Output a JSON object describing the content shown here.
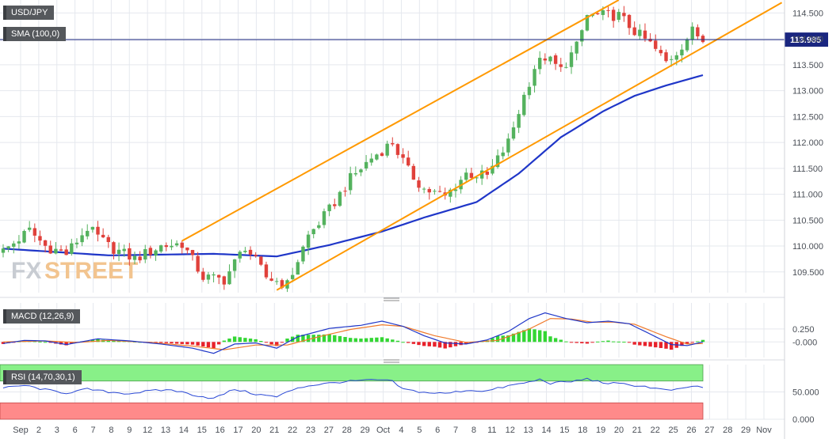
{
  "colors": {
    "up": "#54b25e",
    "down": "#e0413b",
    "sma": "#1f36c8",
    "channel": "#ff9900",
    "macd_line": "#1f36c8",
    "signal_line": "#f07a2b",
    "hist_pos": "#33d633",
    "hist_neg": "#e8212a",
    "rsi_line": "#2c4ad6",
    "rsi_overbought_zone": "#88f088",
    "rsi_oversold_zone": "#ff8a8a",
    "grid": "#e5e8ee",
    "current_price_line": "#1a2680"
  },
  "labels": {
    "symbol": "USD/JPY",
    "sma": "SMA (100,0)",
    "macd": "MACD (12,26,9)",
    "rsi": "RSI (14,70,30,1)",
    "watermark_fx": "FX",
    "watermark_street": "STREET",
    "current_price": "113.985"
  },
  "chart_data": [
    {
      "type": "candlestick",
      "title": "USD/JPY",
      "ylim": [
        109.1,
        114.75
      ],
      "y_ticks": [
        "114.500",
        "114.000",
        "113.500",
        "113.000",
        "112.500",
        "112.000",
        "111.500",
        "111.000",
        "110.500",
        "110.000",
        "109.500"
      ],
      "x_ticks": [
        "Sep",
        "2",
        "3",
        "6",
        "7",
        "8",
        "9",
        "12",
        "13",
        "14",
        "15",
        "16",
        "17",
        "20",
        "21",
        "22",
        "23",
        "27",
        "28",
        "29",
        "Oct",
        "4",
        "5",
        "6",
        "7",
        "8",
        "11",
        "12",
        "13",
        "14",
        "15",
        "18",
        "19",
        "20",
        "21",
        "22",
        "25",
        "26",
        "27",
        "28",
        "29",
        "Nov"
      ],
      "current_price": 113.985,
      "close_keypoints": [
        [
          0,
          109.9
        ],
        [
          5,
          110.3
        ],
        [
          8,
          110.0
        ],
        [
          12,
          109.85
        ],
        [
          16,
          110.35
        ],
        [
          20,
          110.0
        ],
        [
          25,
          109.75
        ],
        [
          30,
          110.0
        ],
        [
          34,
          110.05
        ],
        [
          38,
          109.4
        ],
        [
          42,
          109.35
        ],
        [
          46,
          110.0
        ],
        [
          50,
          109.4
        ],
        [
          54,
          109.25
        ],
        [
          58,
          110.2
        ],
        [
          62,
          110.7
        ],
        [
          66,
          111.3
        ],
        [
          70,
          111.7
        ],
        [
          74,
          112.0
        ],
        [
          77,
          111.45
        ],
        [
          80,
          111.1
        ],
        [
          84,
          110.95
        ],
        [
          88,
          111.4
        ],
        [
          92,
          111.35
        ],
        [
          96,
          112.0
        ],
        [
          99,
          112.9
        ],
        [
          101,
          113.45
        ],
        [
          103,
          113.65
        ],
        [
          106,
          113.4
        ],
        [
          109,
          113.85
        ],
        [
          111,
          114.45
        ],
        [
          114,
          114.45
        ],
        [
          117,
          114.45
        ],
        [
          120,
          114.15
        ],
        [
          123,
          113.9
        ],
        [
          126,
          113.55
        ],
        [
          128,
          113.75
        ],
        [
          131,
          114.15
        ],
        [
          133,
          113.985
        ]
      ],
      "sma_100": [
        [
          0,
          109.95
        ],
        [
          20,
          109.82
        ],
        [
          40,
          109.85
        ],
        [
          52,
          109.8
        ],
        [
          62,
          110.02
        ],
        [
          72,
          110.28
        ],
        [
          80,
          110.55
        ],
        [
          90,
          110.85
        ],
        [
          98,
          111.4
        ],
        [
          106,
          112.1
        ],
        [
          114,
          112.6
        ],
        [
          120,
          112.9
        ],
        [
          126,
          113.1
        ],
        [
          133,
          113.3
        ]
      ],
      "channel_lines": [
        {
          "name": "upper",
          "points": [
            [
              34,
              110.1
            ],
            [
              117,
              114.75
            ]
          ]
        },
        {
          "name": "lower",
          "points": [
            [
              52,
              109.15
            ],
            [
              148,
              114.7
            ]
          ]
        }
      ]
    },
    {
      "type": "line",
      "title": "MACD (12,26,9)",
      "ylim": [
        -0.3,
        0.75
      ],
      "y_ticks": [
        "0.250",
        "-0.000"
      ],
      "macd_keypoints": [
        [
          0,
          -0.03
        ],
        [
          4,
          0.03
        ],
        [
          8,
          0.02
        ],
        [
          12,
          -0.05
        ],
        [
          18,
          0.06
        ],
        [
          24,
          0.02
        ],
        [
          30,
          -0.04
        ],
        [
          36,
          -0.12
        ],
        [
          40,
          -0.22
        ],
        [
          44,
          -0.04
        ],
        [
          48,
          -0.02
        ],
        [
          52,
          -0.12
        ],
        [
          56,
          0.1
        ],
        [
          62,
          0.26
        ],
        [
          68,
          0.32
        ],
        [
          72,
          0.4
        ],
        [
          76,
          0.3
        ],
        [
          80,
          0.12
        ],
        [
          84,
          -0.02
        ],
        [
          88,
          -0.04
        ],
        [
          92,
          0.04
        ],
        [
          96,
          0.2
        ],
        [
          100,
          0.45
        ],
        [
          103,
          0.56
        ],
        [
          107,
          0.45
        ],
        [
          111,
          0.37
        ],
        [
          115,
          0.4
        ],
        [
          119,
          0.35
        ],
        [
          123,
          0.15
        ],
        [
          127,
          -0.05
        ],
        [
          130,
          -0.07
        ],
        [
          133,
          0.0
        ]
      ],
      "signal_keypoints": [
        [
          0,
          0.0
        ],
        [
          8,
          0.02
        ],
        [
          14,
          -0.01
        ],
        [
          20,
          0.03
        ],
        [
          28,
          -0.01
        ],
        [
          36,
          -0.08
        ],
        [
          42,
          -0.15
        ],
        [
          48,
          -0.06
        ],
        [
          54,
          -0.06
        ],
        [
          60,
          0.1
        ],
        [
          66,
          0.24
        ],
        [
          72,
          0.33
        ],
        [
          76,
          0.3
        ],
        [
          82,
          0.12
        ],
        [
          88,
          -0.01
        ],
        [
          94,
          0.03
        ],
        [
          100,
          0.25
        ],
        [
          104,
          0.45
        ],
        [
          108,
          0.44
        ],
        [
          112,
          0.38
        ],
        [
          116,
          0.38
        ],
        [
          120,
          0.34
        ],
        [
          126,
          0.1
        ],
        [
          130,
          -0.04
        ],
        [
          133,
          -0.03
        ]
      ]
    },
    {
      "type": "line",
      "title": "RSI (14,70,30,1)",
      "ylim": [
        0,
        100
      ],
      "y_ticks": [
        "50.000",
        "0.000"
      ],
      "overbought": 70,
      "oversold": 30,
      "rsi_keypoints": [
        [
          0,
          57
        ],
        [
          4,
          62
        ],
        [
          8,
          54
        ],
        [
          12,
          48
        ],
        [
          16,
          55
        ],
        [
          20,
          50
        ],
        [
          24,
          47
        ],
        [
          28,
          52
        ],
        [
          32,
          54
        ],
        [
          36,
          45
        ],
        [
          40,
          38
        ],
        [
          44,
          55
        ],
        [
          48,
          46
        ],
        [
          52,
          41
        ],
        [
          56,
          58
        ],
        [
          60,
          64
        ],
        [
          64,
          68
        ],
        [
          68,
          71
        ],
        [
          72,
          72
        ],
        [
          74,
          69
        ],
        [
          76,
          55
        ],
        [
          80,
          49
        ],
        [
          84,
          47
        ],
        [
          88,
          53
        ],
        [
          92,
          52
        ],
        [
          96,
          61
        ],
        [
          100,
          68
        ],
        [
          102,
          73
        ],
        [
          104,
          66
        ],
        [
          108,
          69
        ],
        [
          111,
          74
        ],
        [
          114,
          67
        ],
        [
          118,
          64
        ],
        [
          122,
          60
        ],
        [
          126,
          53
        ],
        [
          129,
          55
        ],
        [
          131,
          61
        ],
        [
          133,
          58
        ]
      ]
    }
  ]
}
